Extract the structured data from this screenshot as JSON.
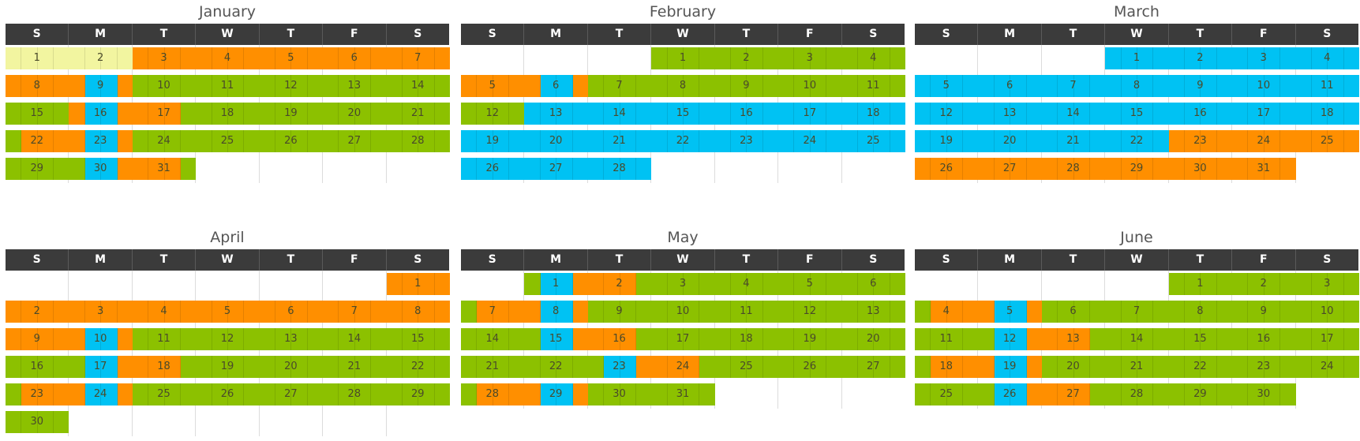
{
  "colors": {
    "green": "#8cc100",
    "orange": "#ff8f00",
    "blue": "#00c2f3",
    "yellow": "#f2f5a0",
    "header_bg": "#3b3b3b"
  },
  "weekdays": [
    "S",
    "M",
    "T",
    "W",
    "T",
    "F",
    "S"
  ],
  "months": [
    {
      "name": "January",
      "start": 0,
      "days": 31,
      "colors": {
        "1": "yyyy",
        "2": "yyyy",
        "3": "oooo",
        "4": "oooo",
        "5": "oooo",
        "6": "oooo",
        "7": "oooo",
        "8": "oooo",
        "9": "obbo",
        "10": "gggg",
        "11": "gggg",
        "12": "gggg",
        "13": "gggg",
        "14": "gggg",
        "15": "gggg",
        "16": "obbo",
        "17": "ooog",
        "18": "gggg",
        "19": "gggg",
        "20": "gggg",
        "21": "gggg",
        "22": "gooo",
        "23": "obbo",
        "24": "gggg",
        "25": "gggg",
        "26": "gggg",
        "27": "gggg",
        "28": "gggg",
        "29": "gggg",
        "30": "gbbo",
        "31": "ooog"
      }
    },
    {
      "name": "February",
      "start": 3,
      "days": 28,
      "colors": {
        "1": "gggg",
        "2": "gggg",
        "3": "gggg",
        "4": "gggg",
        "5": "oooo",
        "6": "obbo",
        "7": "gggg",
        "8": "gggg",
        "9": "gggg",
        "10": "gggg",
        "11": "gggg",
        "12": "gggg",
        "13": "bbbb",
        "14": "bbbb",
        "15": "bbbb",
        "16": "bbbb",
        "17": "bbbb",
        "18": "bbbb",
        "19": "bbbb",
        "20": "bbbb",
        "21": "bbbb",
        "22": "bbbb",
        "23": "bbbb",
        "24": "bbbb",
        "25": "bbbb",
        "26": "bbbb",
        "27": "bbbb",
        "28": "bbbb"
      }
    },
    {
      "name": "March",
      "start": 3,
      "days": 31,
      "colors": {
        "1": "bbbb",
        "2": "bbbb",
        "3": "bbbb",
        "4": "bbbb",
        "5": "bbbb",
        "6": "bbbb",
        "7": "bbbb",
        "8": "bbbb",
        "9": "bbbb",
        "10": "bbbb",
        "11": "bbbb",
        "12": "bbbb",
        "13": "bbbb",
        "14": "bbbb",
        "15": "bbbb",
        "16": "bbbb",
        "17": "bbbb",
        "18": "bbbb",
        "19": "bbbb",
        "20": "bbbb",
        "21": "bbbb",
        "22": "bbbb",
        "23": "oooo",
        "24": "oooo",
        "25": "oooo",
        "26": "oooo",
        "27": "oooo",
        "28": "oooo",
        "29": "oooo",
        "30": "oooo",
        "31": "oooo"
      }
    },
    {
      "name": "April",
      "start": 6,
      "days": 30,
      "colors": {
        "1": "oooo",
        "2": "oooo",
        "3": "oooo",
        "4": "oooo",
        "5": "oooo",
        "6": "oooo",
        "7": "oooo",
        "8": "oooo",
        "9": "oooo",
        "10": "obbo",
        "11": "gggg",
        "12": "gggg",
        "13": "gggg",
        "14": "gggg",
        "15": "gggg",
        "16": "gggg",
        "17": "gbbo",
        "18": "ooog",
        "19": "gggg",
        "20": "gggg",
        "21": "gggg",
        "22": "gggg",
        "23": "gooo",
        "24": "obbo",
        "25": "gggg",
        "26": "gggg",
        "27": "gggg",
        "28": "gggg",
        "29": "gggg",
        "30": "gggg"
      }
    },
    {
      "name": "May",
      "start": 1,
      "days": 31,
      "colors": {
        "1": "gbbo",
        "2": "ooog",
        "3": "gggg",
        "4": "gggg",
        "5": "gggg",
        "6": "gggg",
        "7": "gooo",
        "8": "obbo",
        "9": "gggg",
        "10": "gggg",
        "11": "gggg",
        "12": "gggg",
        "13": "gggg",
        "14": "gggg",
        "15": "gbbo",
        "16": "ooog",
        "17": "gggg",
        "18": "gggg",
        "19": "gggg",
        "20": "gggg",
        "21": "gggg",
        "22": "gggg",
        "23": "gbbo",
        "24": "ooog",
        "25": "gggg",
        "26": "gggg",
        "27": "gggg",
        "28": "gooo",
        "29": "obbo",
        "30": "gggg",
        "31": "gggg"
      }
    },
    {
      "name": "June",
      "start": 4,
      "days": 30,
      "colors": {
        "1": "gggg",
        "2": "gggg",
        "3": "gggg",
        "4": "gooo",
        "5": "obbo",
        "6": "gggg",
        "7": "gggg",
        "8": "gggg",
        "9": "gggg",
        "10": "gggg",
        "11": "gggg",
        "12": "gbbo",
        "13": "ooog",
        "14": "gggg",
        "15": "gggg",
        "16": "gggg",
        "17": "gggg",
        "18": "gooo",
        "19": "obbo",
        "20": "gggg",
        "21": "gggg",
        "22": "gggg",
        "23": "gggg",
        "24": "gggg",
        "25": "gggg",
        "26": "gbbo",
        "27": "ooog",
        "28": "gggg",
        "29": "gggg",
        "30": "gggg"
      }
    }
  ]
}
